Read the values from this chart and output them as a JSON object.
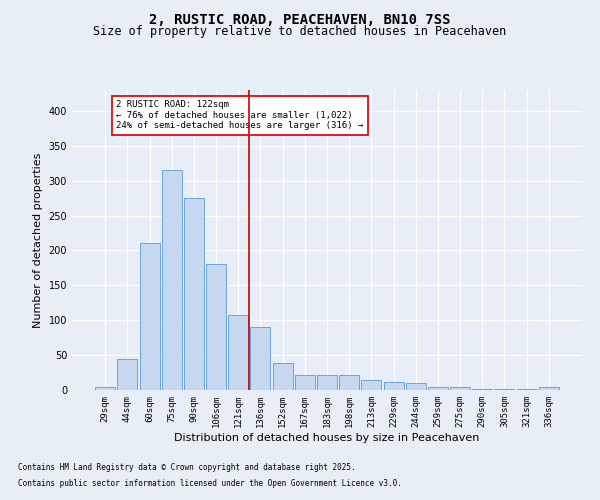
{
  "title1": "2, RUSTIC ROAD, PEACEHAVEN, BN10 7SS",
  "title2": "Size of property relative to detached houses in Peacehaven",
  "xlabel": "Distribution of detached houses by size in Peacehaven",
  "ylabel": "Number of detached properties",
  "categories": [
    "29sqm",
    "44sqm",
    "60sqm",
    "75sqm",
    "90sqm",
    "106sqm",
    "121sqm",
    "136sqm",
    "152sqm",
    "167sqm",
    "183sqm",
    "198sqm",
    "213sqm",
    "229sqm",
    "244sqm",
    "259sqm",
    "275sqm",
    "290sqm",
    "305sqm",
    "321sqm",
    "336sqm"
  ],
  "values": [
    5,
    45,
    211,
    315,
    275,
    180,
    108,
    90,
    38,
    21,
    22,
    22,
    14,
    12,
    10,
    5,
    5,
    2,
    2,
    1,
    4
  ],
  "bar_color": "#c5d8f0",
  "bar_edge_color": "#5b9bd5",
  "vline_x": 6.5,
  "vline_color": "#cc0000",
  "annotation_text": "2 RUSTIC ROAD: 122sqm\n← 76% of detached houses are smaller (1,022)\n24% of semi-detached houses are larger (316) →",
  "annotation_box_color": "#ffffff",
  "annotation_box_edge": "#cc0000",
  "ylim": [
    0,
    430
  ],
  "background_color": "#e8eef7",
  "plot_bg_color": "#e8eef7",
  "footnote1": "Contains HM Land Registry data © Crown copyright and database right 2025.",
  "footnote2": "Contains public sector information licensed under the Open Government Licence v3.0.",
  "title1_fontsize": 10,
  "title2_fontsize": 8.5,
  "tick_fontsize": 6.5,
  "label_fontsize": 8,
  "footnote_fontsize": 5.5
}
